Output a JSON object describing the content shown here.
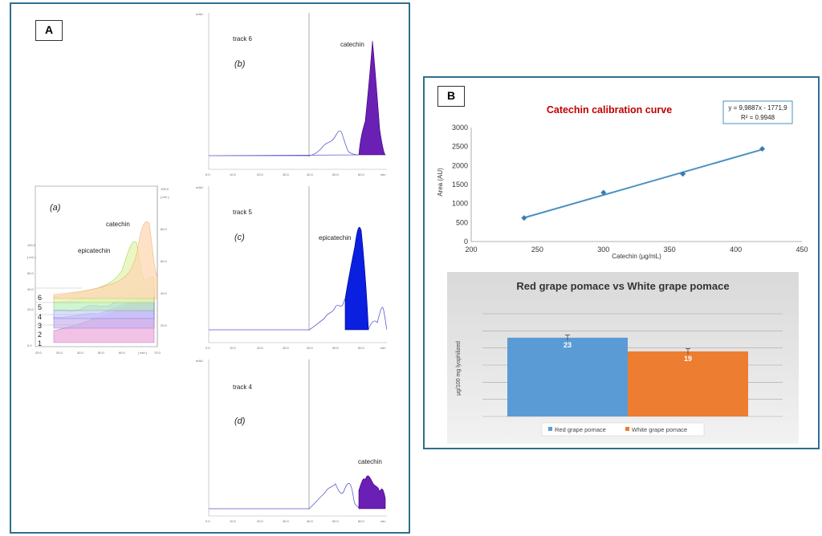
{
  "panel_a": {
    "label": "A",
    "overlay": {
      "label": "(a)",
      "peak_labels": [
        "catechin",
        "epicatechin"
      ],
      "track_numbers": [
        "6",
        "5",
        "4",
        "3",
        "2",
        "1"
      ]
    },
    "tracks": [
      {
        "track": "track 6",
        "label": "(b)",
        "peak_label": "catechin",
        "fill": "#6a1fb5"
      },
      {
        "track": "track 5",
        "label": "(c)",
        "peak_label": "epicatechin",
        "fill": "#0a1fe0"
      },
      {
        "track": "track 4",
        "label": "(d)",
        "peak_label": "catechin",
        "fill": "#6a1fb5"
      }
    ]
  },
  "panel_b": {
    "label": "B",
    "calibration": {
      "title": "Catechin calibration curve",
      "equation": "y = 9,9887x - 1771,9",
      "r2": "R² = 0.9948",
      "xlabel": "Catechin (µg/mL)",
      "ylabel": "Area (AU)",
      "title_color": "#c00000",
      "line_color": "#4a90c2"
    },
    "bar_chart": {
      "title": "Red grape pomace vs White grape pomace",
      "ylabel": "µg/100 mg lyophilized",
      "colors": [
        "#5b9bd5",
        "#ed7d31"
      ]
    }
  },
  "chart_data": [
    {
      "type": "scatter",
      "title": "Catechin calibration curve",
      "xlabel": "Catechin (µg/mL)",
      "ylabel": "Area (AU)",
      "xlim": [
        200,
        450
      ],
      "ylim": [
        0,
        3000
      ],
      "xticks": [
        200,
        250,
        300,
        350,
        400,
        450
      ],
      "yticks": [
        0,
        500,
        1000,
        1500,
        2000,
        2500,
        3000
      ],
      "x": [
        240,
        300,
        360,
        420
      ],
      "y": [
        620,
        1290,
        1780,
        2440
      ],
      "trendline": {
        "slope": 9.9887,
        "intercept": -1771.9,
        "r2": 0.9948
      },
      "grid": false
    },
    {
      "type": "bar",
      "title": "Red grape pomace vs White grape pomace",
      "ylabel": "µg/100 mg lyophilized",
      "categories": [
        "Red grape pomace",
        "White grape pomace"
      ],
      "values": [
        23,
        19
      ],
      "value_labels": [
        "23",
        "19"
      ],
      "errors": [
        0.8,
        0.8
      ],
      "ylim": [
        0,
        30
      ],
      "legend": "bottom",
      "grid": true
    }
  ]
}
